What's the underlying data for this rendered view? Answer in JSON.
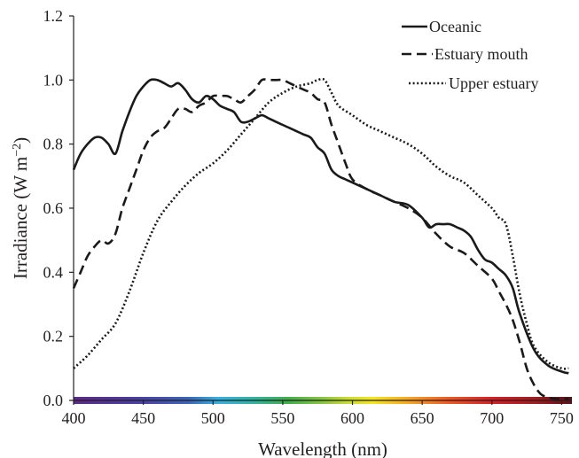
{
  "chart_data": {
    "type": "line",
    "xlabel": "Wavelength (nm)",
    "ylabel_main": "Irradiance (W m",
    "ylabel_sup": "−2",
    "ylabel_close": ")",
    "xlim": [
      400,
      755
    ],
    "ylim": [
      0,
      1.2
    ],
    "x_ticks": [
      400,
      450,
      500,
      550,
      600,
      650,
      700,
      750
    ],
    "x_tick_labels": [
      "400",
      "450",
      "500",
      "550",
      "600",
      "650",
      "700",
      "750"
    ],
    "y_ticks": [
      0.0,
      0.2,
      0.4,
      0.6,
      0.8,
      1.0,
      1.2
    ],
    "y_tick_labels": [
      "0.0",
      "0.2",
      "0.4",
      "0.6",
      "0.8",
      "1.0",
      "1.2"
    ],
    "grid": false,
    "legend_position": "top-right",
    "spectrum_bar": true,
    "series": [
      {
        "name": "Oceanic",
        "style": "solid",
        "x": [
          400,
          405,
          410,
          415,
          420,
          425,
          430,
          435,
          440,
          445,
          450,
          455,
          460,
          465,
          470,
          475,
          480,
          485,
          490,
          495,
          500,
          505,
          510,
          515,
          520,
          525,
          530,
          535,
          540,
          545,
          550,
          555,
          560,
          565,
          570,
          575,
          580,
          585,
          590,
          595,
          600,
          610,
          620,
          630,
          640,
          650,
          655,
          660,
          665,
          670,
          675,
          680,
          685,
          690,
          695,
          700,
          705,
          710,
          715,
          720,
          730,
          740,
          750,
          755
        ],
        "y": [
          0.72,
          0.77,
          0.8,
          0.82,
          0.82,
          0.8,
          0.77,
          0.84,
          0.9,
          0.95,
          0.98,
          1.0,
          1.0,
          0.99,
          0.98,
          0.99,
          0.97,
          0.94,
          0.93,
          0.95,
          0.94,
          0.92,
          0.91,
          0.9,
          0.87,
          0.87,
          0.88,
          0.89,
          0.88,
          0.87,
          0.86,
          0.85,
          0.84,
          0.83,
          0.82,
          0.79,
          0.77,
          0.72,
          0.7,
          0.69,
          0.68,
          0.66,
          0.64,
          0.62,
          0.61,
          0.57,
          0.54,
          0.55,
          0.55,
          0.55,
          0.54,
          0.53,
          0.51,
          0.47,
          0.44,
          0.43,
          0.41,
          0.39,
          0.35,
          0.27,
          0.16,
          0.11,
          0.09,
          0.085
        ]
      },
      {
        "name": "Estuary mouth",
        "style": "dashed",
        "x": [
          400,
          405,
          410,
          415,
          420,
          425,
          430,
          435,
          440,
          445,
          450,
          455,
          460,
          465,
          470,
          475,
          480,
          485,
          490,
          495,
          500,
          505,
          510,
          515,
          520,
          525,
          530,
          535,
          540,
          545,
          550,
          555,
          560,
          565,
          570,
          575,
          580,
          585,
          590,
          595,
          600,
          610,
          620,
          630,
          640,
          650,
          660,
          670,
          680,
          690,
          700,
          705,
          710,
          715,
          720,
          725,
          730,
          735,
          740,
          745,
          750,
          755
        ],
        "y": [
          0.35,
          0.4,
          0.45,
          0.48,
          0.5,
          0.49,
          0.52,
          0.6,
          0.66,
          0.72,
          0.78,
          0.82,
          0.84,
          0.85,
          0.88,
          0.91,
          0.91,
          0.9,
          0.92,
          0.93,
          0.95,
          0.95,
          0.95,
          0.94,
          0.93,
          0.95,
          0.97,
          1.0,
          1.0,
          1.0,
          1.0,
          0.99,
          0.98,
          0.97,
          0.96,
          0.94,
          0.93,
          0.86,
          0.8,
          0.74,
          0.69,
          0.66,
          0.64,
          0.62,
          0.6,
          0.57,
          0.52,
          0.48,
          0.46,
          0.42,
          0.38,
          0.34,
          0.3,
          0.25,
          0.18,
          0.1,
          0.05,
          0.02,
          0.01,
          0.005,
          0.005,
          0.005
        ]
      },
      {
        "name": "Upper estuary",
        "style": "dotted",
        "x": [
          400,
          410,
          420,
          430,
          440,
          450,
          460,
          470,
          480,
          490,
          500,
          510,
          520,
          530,
          540,
          550,
          560,
          570,
          575,
          580,
          585,
          590,
          600,
          610,
          620,
          630,
          640,
          650,
          660,
          670,
          680,
          690,
          700,
          705,
          710,
          715,
          720,
          725,
          730,
          740,
          750,
          755
        ],
        "y": [
          0.1,
          0.14,
          0.19,
          0.24,
          0.34,
          0.46,
          0.56,
          0.62,
          0.67,
          0.71,
          0.74,
          0.78,
          0.83,
          0.88,
          0.93,
          0.96,
          0.98,
          0.99,
          1.0,
          1.0,
          0.96,
          0.92,
          0.89,
          0.86,
          0.84,
          0.82,
          0.8,
          0.77,
          0.73,
          0.7,
          0.68,
          0.64,
          0.6,
          0.57,
          0.55,
          0.45,
          0.33,
          0.24,
          0.17,
          0.12,
          0.1,
          0.1
        ]
      }
    ]
  }
}
